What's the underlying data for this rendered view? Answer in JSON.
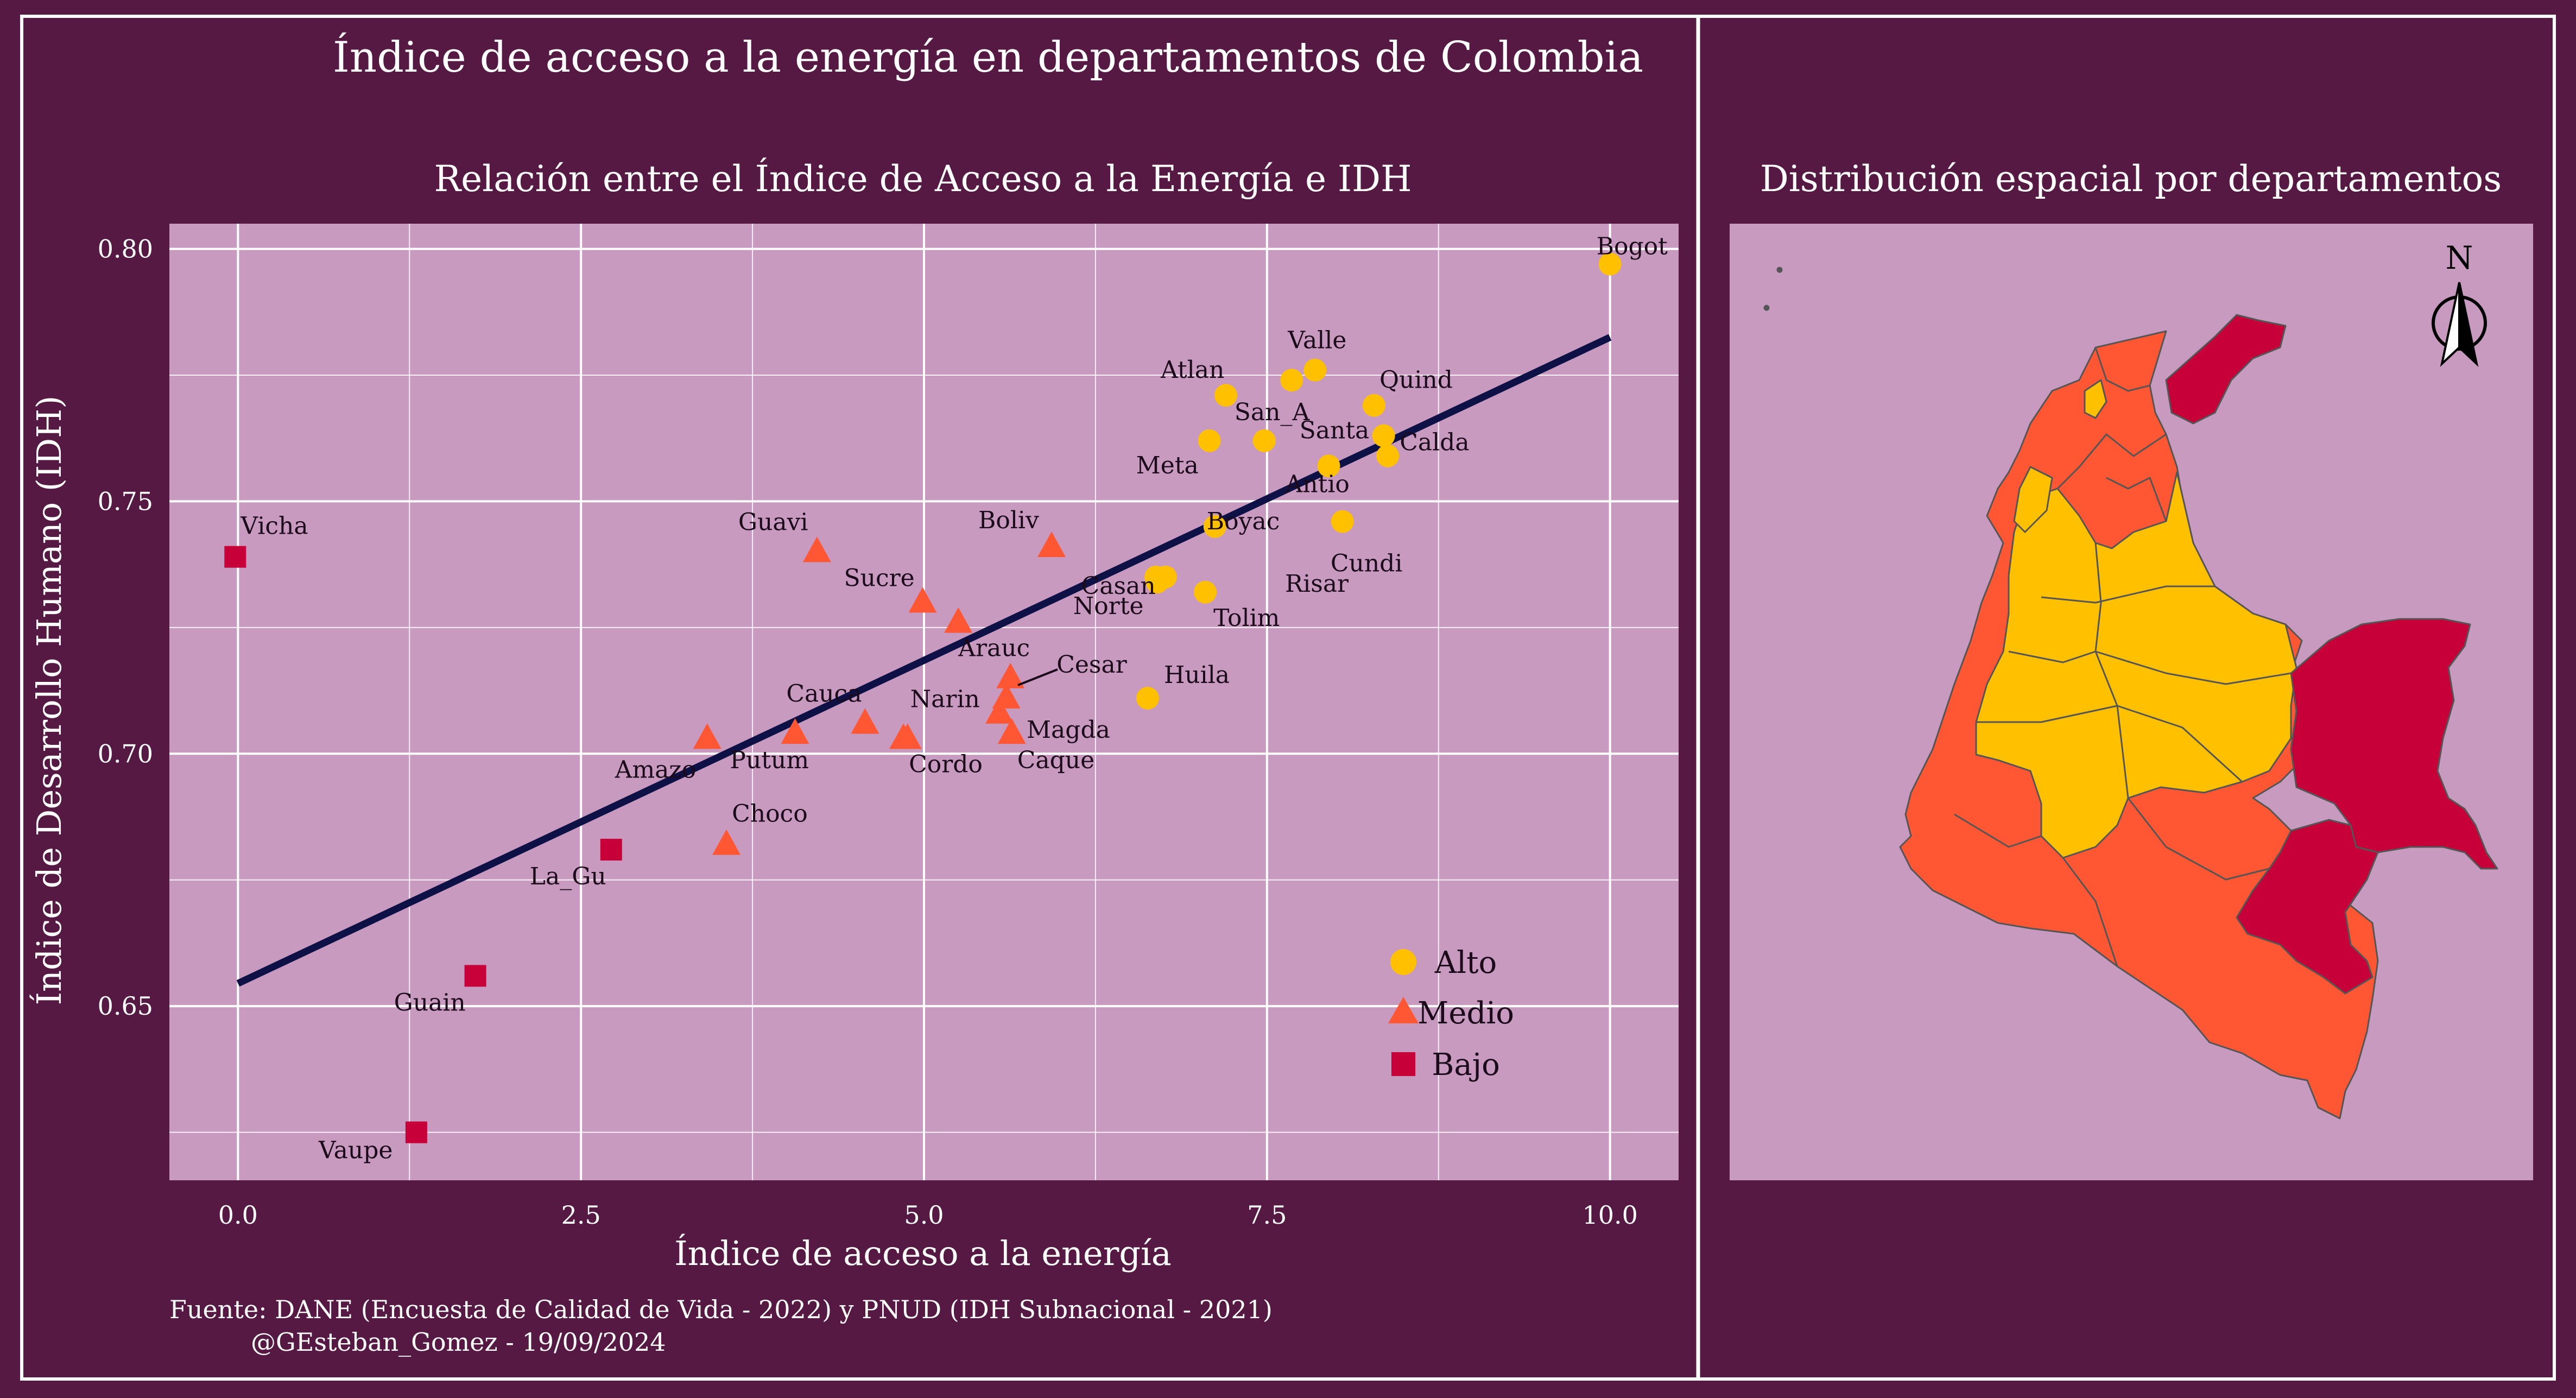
{
  "title": "Índice de acceso a la energía en departamentos de Colombia",
  "caption_line1": "Fuente: DANE (Encuesta de Calidad de Vida - 2022) y PNUD (IDH Subnacional - 2021)",
  "caption_line2": "@GEsteban_Gomez - 19/09/2024",
  "colors": {
    "background": "#561943",
    "panel": "#c89abf",
    "alto": "#ffc000",
    "medio": "#ff5733",
    "bajo": "#c70039",
    "regression": "#0d1145",
    "grid": "#ffffff"
  },
  "chart_data": {
    "type": "scatter",
    "title": "Relación entre el Índice de Acceso a la Energía e IDH",
    "xlabel": "Índice de acceso a la energía",
    "ylabel": "Índice de Desarrollo Humano (IDH)",
    "xlim": [
      -0.5,
      10.5
    ],
    "ylim": [
      0.6155,
      0.805
    ],
    "x_ticks": [
      0.0,
      2.5,
      5.0,
      7.5,
      10.0
    ],
    "x_tick_labels": [
      "0.0",
      "2.5",
      "5.0",
      "7.5",
      "10.0"
    ],
    "y_ticks": [
      0.65,
      0.7,
      0.75,
      0.8
    ],
    "y_tick_labels": [
      "0.65",
      "0.70",
      "0.75",
      "0.80"
    ],
    "grid": true,
    "legend_position": "bottom-right",
    "regression_line": {
      "x": [
        0.0,
        10.0
      ],
      "y": [
        0.6545,
        0.7825
      ]
    },
    "series": [
      {
        "name": "Alto",
        "marker": "circle",
        "points": [
          {
            "label": "Bogot",
            "x": 10.0,
            "y": 0.797
          },
          {
            "label": "Valle",
            "x": 7.85,
            "y": 0.776
          },
          {
            "label": "",
            "x": 7.68,
            "y": 0.774
          },
          {
            "label": "Atlan",
            "x": 7.2,
            "y": 0.771
          },
          {
            "label": "Quind",
            "x": 8.28,
            "y": 0.769
          },
          {
            "label": "San_A",
            "x": 7.48,
            "y": 0.762
          },
          {
            "label": "Meta",
            "x": 7.08,
            "y": 0.762
          },
          {
            "label": "Santa",
            "x": 8.35,
            "y": 0.763
          },
          {
            "label": "Calda",
            "x": 8.38,
            "y": 0.759
          },
          {
            "label": "Antio",
            "x": 7.95,
            "y": 0.757
          },
          {
            "label": "Cundi",
            "x": 8.05,
            "y": 0.746
          },
          {
            "label": "Boyac",
            "x": 7.12,
            "y": 0.745
          },
          {
            "label": "Casan",
            "x": 6.7,
            "y": 0.734
          },
          {
            "label": "Norte",
            "x": 6.76,
            "y": 0.735
          },
          {
            "label": "Risar",
            "x": 6.69,
            "y": 0.735
          },
          {
            "label": "Tolim",
            "x": 7.05,
            "y": 0.732
          },
          {
            "label": "Huila",
            "x": 6.63,
            "y": 0.711
          }
        ]
      },
      {
        "name": "Medio",
        "marker": "triangle",
        "points": [
          {
            "label": "Boliv",
            "x": 5.93,
            "y": 0.741
          },
          {
            "label": "Guavi",
            "x": 4.22,
            "y": 0.74
          },
          {
            "label": "Sucre",
            "x": 4.99,
            "y": 0.73
          },
          {
            "label": "Arauc",
            "x": 5.25,
            "y": 0.726
          },
          {
            "label": "Cesar",
            "x": 5.63,
            "y": 0.715
          },
          {
            "label": "",
            "x": 5.6,
            "y": 0.711
          },
          {
            "label": "Magda",
            "x": 5.55,
            "y": 0.708
          },
          {
            "label": "Cauca",
            "x": 4.57,
            "y": 0.706
          },
          {
            "label": "Caque",
            "x": 5.64,
            "y": 0.704
          },
          {
            "label": "Narin",
            "x": 4.88,
            "y": 0.703
          },
          {
            "label": "Amazo",
            "x": 3.42,
            "y": 0.703
          },
          {
            "label": "Putum",
            "x": 4.06,
            "y": 0.704
          },
          {
            "label": "Cordo",
            "x": 4.85,
            "y": 0.703
          },
          {
            "label": "Choco",
            "x": 3.56,
            "y": 0.682
          }
        ]
      },
      {
        "name": "Bajo",
        "marker": "square",
        "points": [
          {
            "label": "Vicha",
            "x": -0.02,
            "y": 0.739
          },
          {
            "label": "La_Gu",
            "x": 2.72,
            "y": 0.681
          },
          {
            "label": "Guain",
            "x": 1.73,
            "y": 0.656
          },
          {
            "label": "Vaupe",
            "x": 1.3,
            "y": 0.625
          }
        ]
      }
    ]
  },
  "map": {
    "title": "Distribución espacial por departamentos",
    "north_label": "N"
  }
}
